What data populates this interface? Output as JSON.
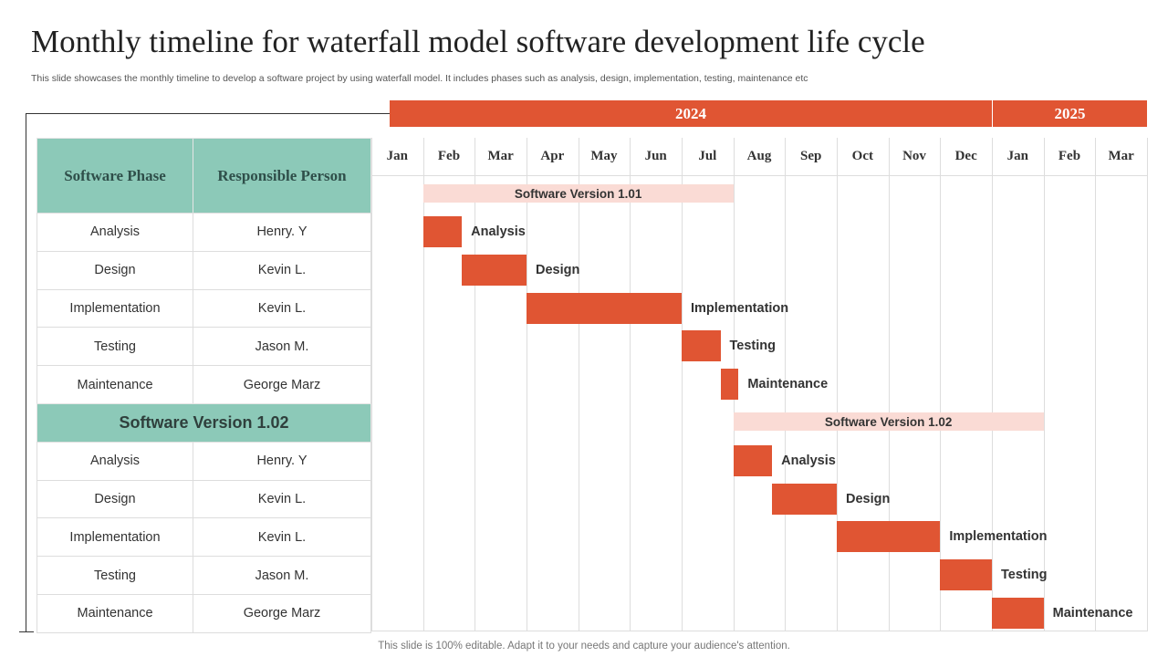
{
  "title": "Monthly timeline for waterfall model software development life cycle",
  "subtitle": "This slide showcases the monthly timeline to develop a software project by using waterfall model. It includes phases such as analysis, design, implementation, testing, maintenance etc",
  "footer": "This slide is 100% editable. Adapt it to your needs and capture your audience's attention.",
  "colors": {
    "bar": "#E05533",
    "header": "#8CC9B8",
    "band": "#FADBD5"
  },
  "table": {
    "headers": [
      "Software Phase",
      "Responsible Person"
    ],
    "groups": [
      {
        "rows": [
          [
            "Analysis",
            "Henry. Y"
          ],
          [
            "Design",
            "Kevin L."
          ],
          [
            "Implementation",
            "Kevin L."
          ],
          [
            "Testing",
            "Jason M."
          ],
          [
            "Maintenance",
            "George Marz"
          ]
        ]
      },
      {
        "title": "Software Version 1.02",
        "rows": [
          [
            "Analysis",
            "Henry. Y"
          ],
          [
            "Design",
            "Kevin L."
          ],
          [
            "Implementation",
            "Kevin L."
          ],
          [
            "Testing",
            "Jason M."
          ],
          [
            "Maintenance",
            "George Marz"
          ]
        ]
      }
    ]
  },
  "chart_data": {
    "type": "gantt",
    "years": [
      {
        "label": "2024",
        "months": 12
      },
      {
        "label": "2025",
        "months": 3
      }
    ],
    "months": [
      "Jan",
      "Feb",
      "Mar",
      "Apr",
      "May",
      "Jun",
      "Jul",
      "Aug",
      "Sep",
      "Oct",
      "Nov",
      "Dec",
      "Jan",
      "Feb",
      "Mar"
    ],
    "x_unit": "months from Jan 2024",
    "versions": [
      {
        "label": "Software Version 1.01",
        "start": 1,
        "end": 7,
        "tasks": [
          {
            "name": "Analysis",
            "start": 1,
            "end": 1.75
          },
          {
            "name": "Design",
            "start": 1.75,
            "end": 3
          },
          {
            "name": "Implementation",
            "start": 3,
            "end": 6
          },
          {
            "name": "Testing",
            "start": 6,
            "end": 6.75
          },
          {
            "name": "Maintenance",
            "start": 6.75,
            "end": 7.1
          }
        ]
      },
      {
        "label": "Software Version 1.02",
        "start": 7,
        "end": 13,
        "tasks": [
          {
            "name": "Analysis",
            "start": 7,
            "end": 7.75
          },
          {
            "name": "Design",
            "start": 7.75,
            "end": 9
          },
          {
            "name": "Implementation",
            "start": 9,
            "end": 11
          },
          {
            "name": "Testing",
            "start": 11,
            "end": 12
          },
          {
            "name": "Maintenance",
            "start": 12,
            "end": 13
          }
        ]
      }
    ]
  }
}
